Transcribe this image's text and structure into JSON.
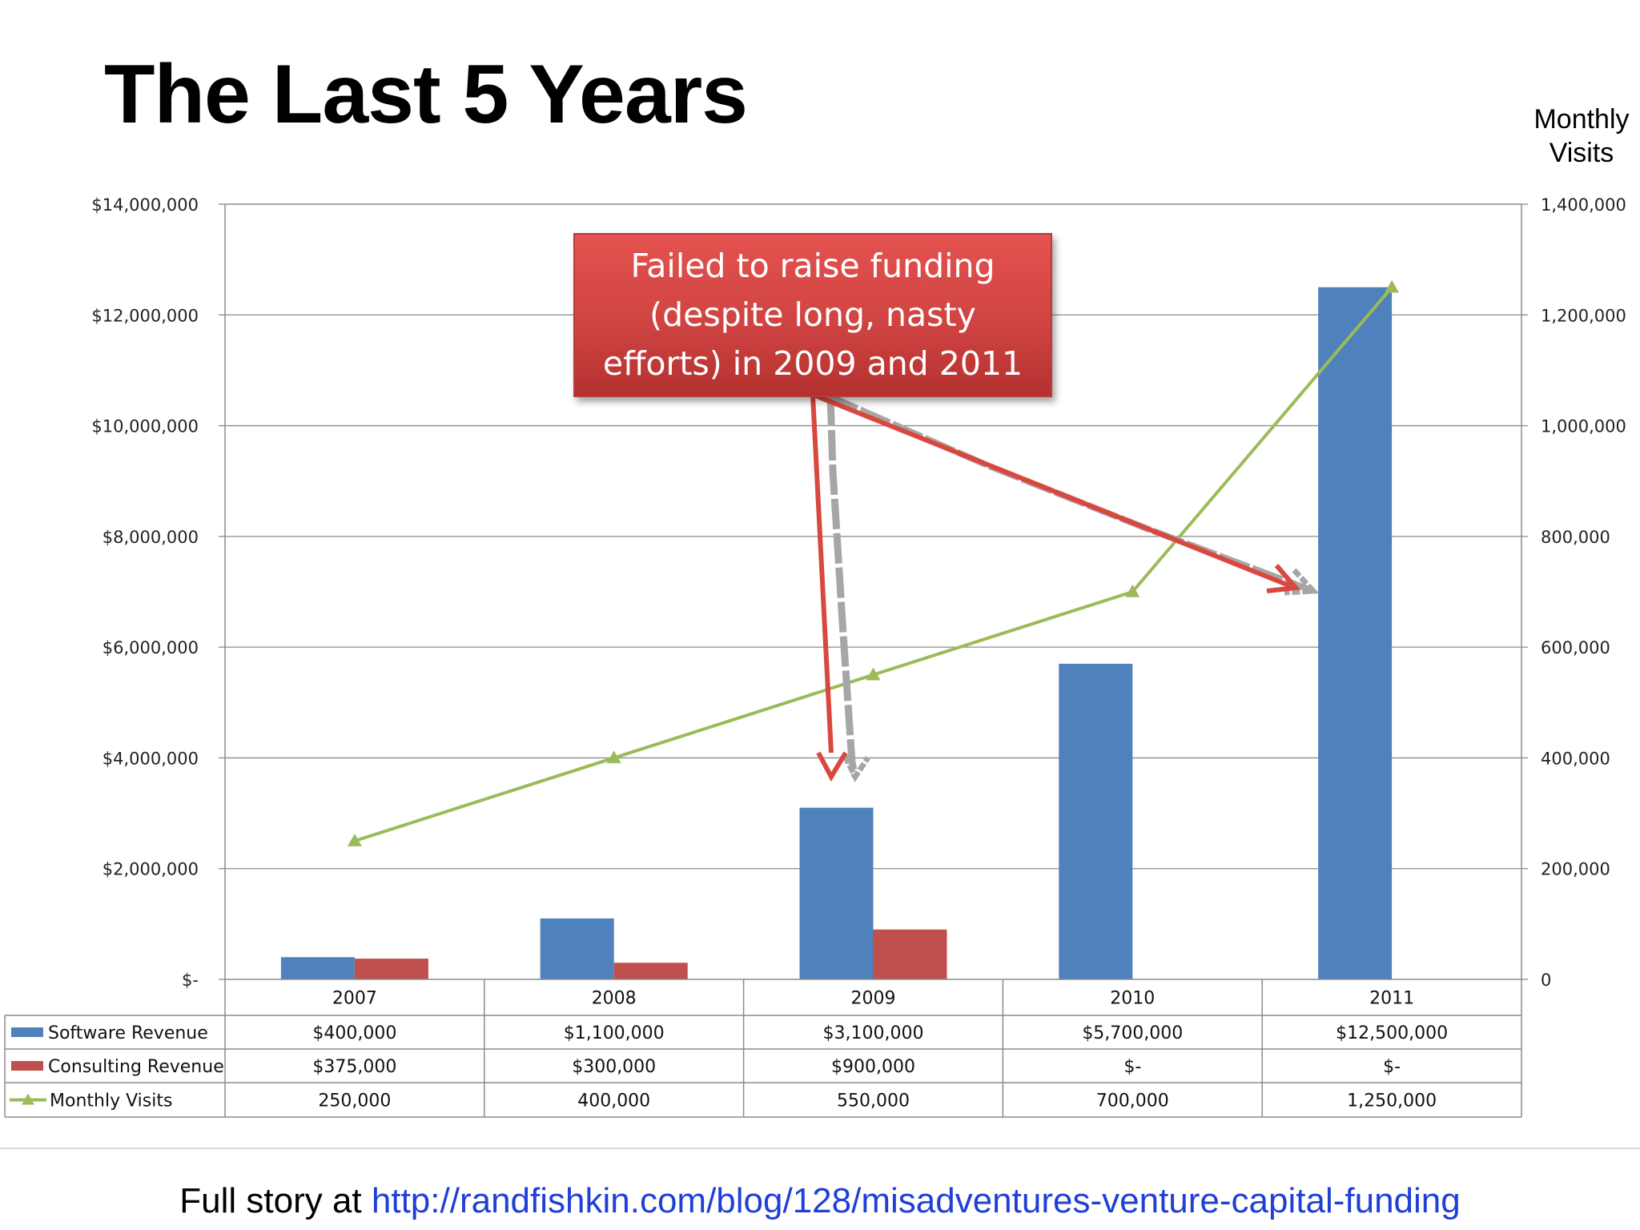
{
  "slide": {
    "title": "The Last 5 Years",
    "right_axis_title_line1": "Monthly",
    "right_axis_title_line2": "Visits",
    "callout": "Failed to raise funding (despite long, nasty efforts) in 2009 and 2011",
    "footer_prefix": "Full story at ",
    "footer_link": "http://randfishkin.com/blog/128/misadventures-venture-capital-funding"
  },
  "colors": {
    "software": "#4f81bd",
    "consulting": "#c0504d",
    "visits": "#9bbb59",
    "callout": "#d9483f",
    "arrow_gray": "#a6a6a6",
    "link": "#1f3fd6"
  },
  "chart_data": {
    "type": "bar",
    "categories": [
      "2007",
      "2008",
      "2009",
      "2010",
      "2011"
    ],
    "series": [
      {
        "name": "Software Revenue",
        "kind": "bar",
        "axis": "left",
        "color": "#4f81bd",
        "values": [
          400000,
          1100000,
          3100000,
          5700000,
          12500000
        ],
        "labels": [
          "$400,000",
          "$1,100,000",
          "$3,100,000",
          "$5,700,000",
          "$12,500,000"
        ]
      },
      {
        "name": "Consulting Revenue",
        "kind": "bar",
        "axis": "left",
        "color": "#c0504d",
        "values": [
          375000,
          300000,
          900000,
          0,
          0
        ],
        "labels": [
          "$375,000",
          "$300,000",
          "$900,000",
          "$-",
          "$-"
        ]
      },
      {
        "name": "Monthly Visits",
        "kind": "line",
        "marker": "triangle",
        "axis": "right",
        "color": "#9bbb59",
        "values": [
          250000,
          400000,
          550000,
          700000,
          1250000
        ],
        "labels": [
          "250,000",
          "400,000",
          "550,000",
          "700,000",
          "1,250,000"
        ]
      }
    ],
    "y_left": {
      "min": 0,
      "max": 14000000,
      "step": 2000000,
      "ticks": [
        "$-",
        "$2,000,000",
        "$4,000,000",
        "$6,000,000",
        "$8,000,000",
        "$10,000,000",
        "$12,000,000",
        "$14,000,000"
      ]
    },
    "y_right": {
      "min": 0,
      "max": 1400000,
      "step": 200000,
      "ticks": [
        "0",
        "200,000",
        "400,000",
        "600,000",
        "800,000",
        "1,000,000",
        "1,200,000",
        "1,400,000"
      ],
      "title": "Monthly Visits"
    },
    "grid": true,
    "legend": "data-table-below",
    "annotation": {
      "text": "Failed to raise funding (despite long, nasty efforts) in 2009 and 2011",
      "points_to": [
        "2009",
        "2011"
      ]
    }
  }
}
